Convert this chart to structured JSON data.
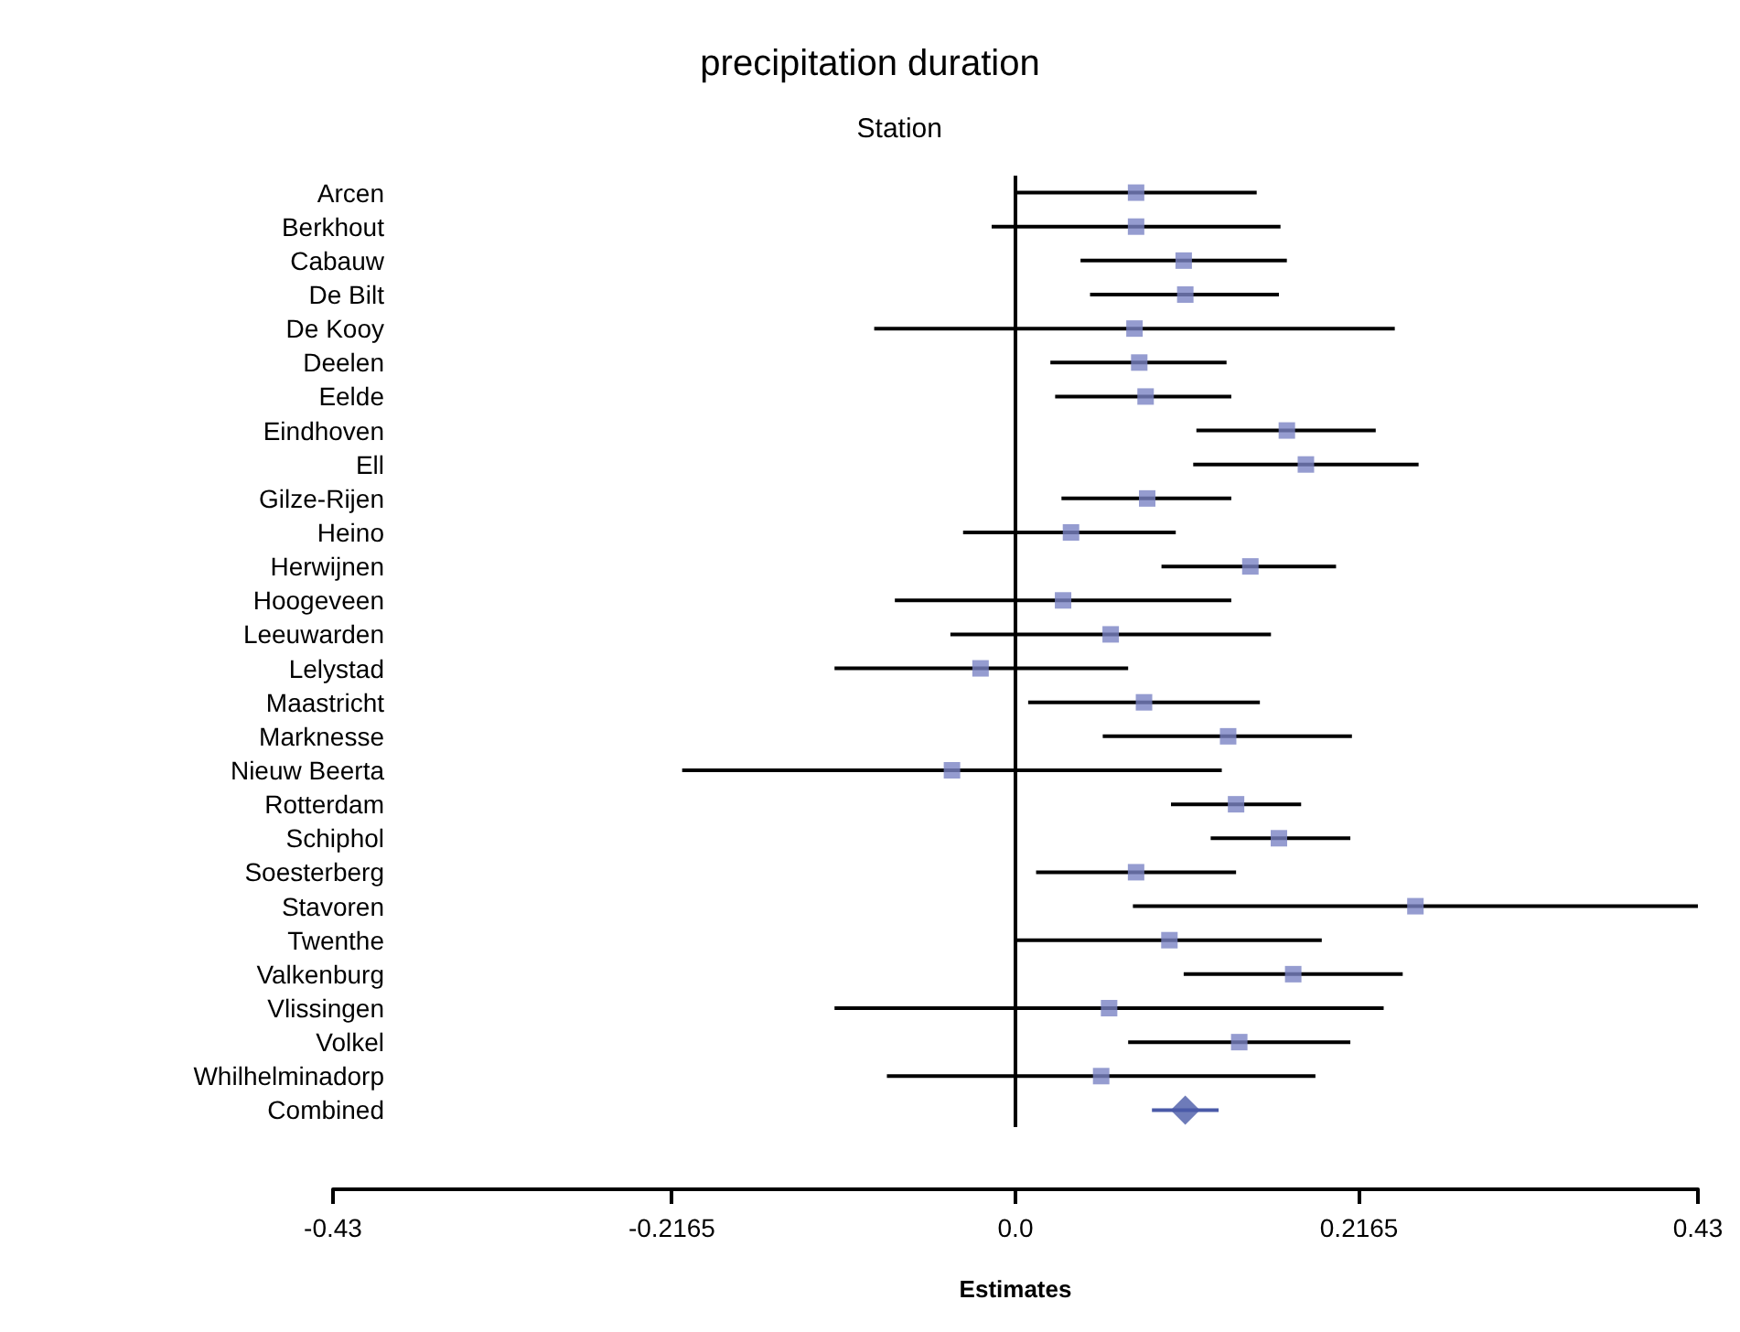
{
  "chart_data": {
    "type": "scatter",
    "title": "precipitation duration",
    "xlabel": "Estimates",
    "ylabel": "Station",
    "orientation": "horizontal",
    "categories": [
      "Arcen",
      "Berkhout",
      "Cabauw",
      "De Bilt",
      "De Kooy",
      "Deelen",
      "Eelde",
      "Eindhoven",
      "Ell",
      "Gilze-Rijen",
      "Heino",
      "Herwijnen",
      "Hoogeveen",
      "Leeuwarden",
      "Lelystad",
      "Maastricht",
      "Marknesse",
      "Nieuw Beerta",
      "Rotterdam",
      "Schiphol",
      "Soesterberg",
      "Stavoren",
      "Twenthe",
      "Valkenburg",
      "Vlissingen",
      "Volkel",
      "Whilhelminadorp",
      "Combined"
    ],
    "series": [
      {
        "color": "#7b83c4",
        "marker": "square",
        "values": [
          0.076,
          0.076,
          0.106,
          0.107,
          0.075,
          0.078,
          0.082,
          0.171,
          0.183,
          0.083,
          0.035,
          0.148,
          0.03,
          0.06,
          -0.022,
          0.081,
          0.134,
          -0.04,
          0.139,
          0.166,
          0.076,
          0.252,
          0.097,
          0.175,
          0.059,
          0.141,
          0.054,
          null
        ],
        "errors": [
          [
            0.0,
            0.152
          ],
          [
            -0.015,
            0.167
          ],
          [
            0.041,
            0.171
          ],
          [
            0.047,
            0.166
          ],
          [
            -0.089,
            0.239
          ],
          [
            0.022,
            0.133
          ],
          [
            0.025,
            0.136
          ],
          [
            0.114,
            0.227
          ],
          [
            0.112,
            0.254
          ],
          [
            0.029,
            0.136
          ],
          [
            -0.033,
            0.101
          ],
          [
            0.092,
            0.202
          ],
          [
            -0.076,
            0.136
          ],
          [
            -0.041,
            0.161
          ],
          [
            -0.114,
            0.071
          ],
          [
            0.008,
            0.154
          ],
          [
            0.055,
            0.212
          ],
          [
            -0.21,
            0.13
          ],
          [
            0.098,
            0.18
          ],
          [
            0.123,
            0.211
          ],
          [
            0.013,
            0.139
          ],
          [
            0.074,
            0.43
          ],
          [
            0.001,
            0.193
          ],
          [
            0.106,
            0.244
          ],
          [
            -0.114,
            0.232
          ],
          [
            0.071,
            0.211
          ],
          [
            -0.081,
            0.189
          ],
          null
        ]
      },
      {
        "color": "#4a5aa8",
        "marker": "diamond",
        "values": [
          null,
          null,
          null,
          null,
          null,
          null,
          null,
          null,
          null,
          null,
          null,
          null,
          null,
          null,
          null,
          null,
          null,
          null,
          null,
          null,
          null,
          null,
          null,
          null,
          null,
          null,
          null,
          0.107
        ],
        "errors": [
          null,
          null,
          null,
          null,
          null,
          null,
          null,
          null,
          null,
          null,
          null,
          null,
          null,
          null,
          null,
          null,
          null,
          null,
          null,
          null,
          null,
          null,
          null,
          null,
          null,
          null,
          null,
          [
            0.086,
            0.128
          ]
        ]
      }
    ],
    "xlim": [
      -0.43,
      0.43
    ],
    "xticks": [
      -0.43,
      -0.2165,
      {
        "value": 0,
        "label": "0.0"
      },
      0.2165,
      0.43
    ],
    "ref_lines": [
      {
        "axis": "x",
        "value": 0,
        "color": "#000000"
      }
    ],
    "grid": false
  }
}
